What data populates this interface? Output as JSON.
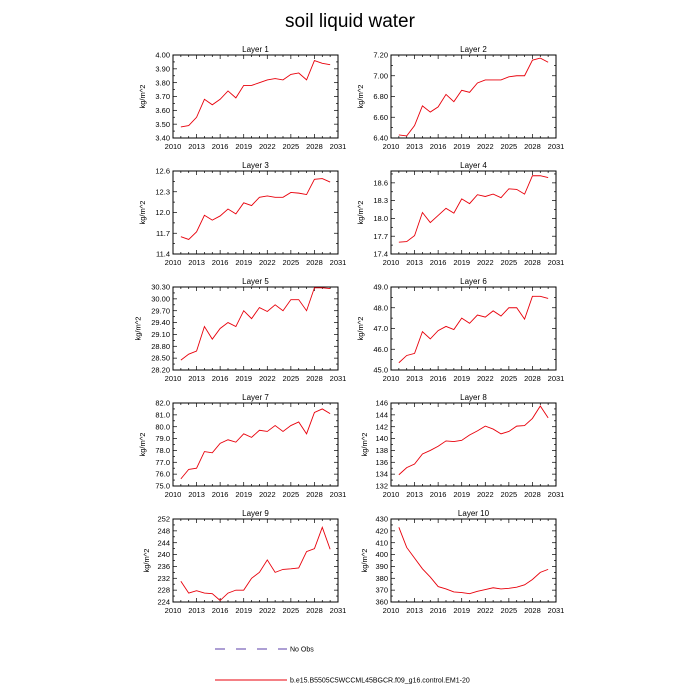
{
  "title": "soil liquid water",
  "legend": {
    "no_obs_label": "No Obs",
    "model_label": "b.e15.B5505C5WCCML45BGCR.f09_g16.control.EM1-20",
    "obs_color": "#5b3fa8",
    "model_color": "#e8000b"
  },
  "chart_data": [
    {
      "type": "line",
      "title": "Layer 1",
      "ylabel": "kg/m^2",
      "xlim": [
        2010,
        2031
      ],
      "xticks": [
        2010,
        2013,
        2016,
        2019,
        2022,
        2025,
        2028,
        2031
      ],
      "ylim": [
        3.4,
        4.0
      ],
      "yticks": [
        "3.40",
        "3.50",
        "3.60",
        "3.70",
        "3.80",
        "3.90",
        "4.00"
      ],
      "x": [
        2011,
        2012,
        2013,
        2014,
        2015,
        2016,
        2017,
        2018,
        2019,
        2020,
        2021,
        2022,
        2023,
        2024,
        2025,
        2026,
        2027,
        2028,
        2029,
        2030
      ],
      "series": [
        {
          "values": [
            3.48,
            3.49,
            3.55,
            3.68,
            3.64,
            3.68,
            3.74,
            3.69,
            3.78,
            3.78,
            3.8,
            3.82,
            3.83,
            3.82,
            3.86,
            3.87,
            3.82,
            3.96,
            3.94,
            3.93
          ]
        }
      ]
    },
    {
      "type": "line",
      "title": "Layer 2",
      "ylabel": "kg/m^2",
      "xlim": [
        2010,
        2031
      ],
      "xticks": [
        2010,
        2013,
        2016,
        2019,
        2022,
        2025,
        2028,
        2031
      ],
      "ylim": [
        6.4,
        7.2
      ],
      "yticks": [
        "6.40",
        "6.60",
        "6.80",
        "7.00",
        "7.20"
      ],
      "x": [
        2011,
        2012,
        2013,
        2014,
        2015,
        2016,
        2017,
        2018,
        2019,
        2020,
        2021,
        2022,
        2023,
        2024,
        2025,
        2026,
        2027,
        2028,
        2029,
        2030
      ],
      "series": [
        {
          "values": [
            6.43,
            6.42,
            6.52,
            6.71,
            6.65,
            6.7,
            6.82,
            6.75,
            6.86,
            6.84,
            6.93,
            6.96,
            6.96,
            6.96,
            6.99,
            7.0,
            7.0,
            7.15,
            7.17,
            7.13
          ]
        }
      ]
    },
    {
      "type": "line",
      "title": "Layer 3",
      "ylabel": "kg/m^2",
      "xlim": [
        2010,
        2031
      ],
      "xticks": [
        2010,
        2013,
        2016,
        2019,
        2022,
        2025,
        2028,
        2031
      ],
      "ylim": [
        11.4,
        12.6
      ],
      "yticks": [
        "11.4",
        "11.7",
        "12.0",
        "12.3",
        "12.6"
      ],
      "x": [
        2011,
        2012,
        2013,
        2014,
        2015,
        2016,
        2017,
        2018,
        2019,
        2020,
        2021,
        2022,
        2023,
        2024,
        2025,
        2026,
        2027,
        2028,
        2029,
        2030
      ],
      "series": [
        {
          "values": [
            11.65,
            11.61,
            11.72,
            11.96,
            11.89,
            11.95,
            12.05,
            11.98,
            12.14,
            12.1,
            12.22,
            12.24,
            12.22,
            12.22,
            12.29,
            12.28,
            12.26,
            12.48,
            12.49,
            12.44
          ]
        }
      ]
    },
    {
      "type": "line",
      "title": "Layer 4",
      "ylabel": "kg/m^2",
      "xlim": [
        2010,
        2031
      ],
      "xticks": [
        2010,
        2013,
        2016,
        2019,
        2022,
        2025,
        2028,
        2031
      ],
      "ylim": [
        17.4,
        18.8
      ],
      "yticks": [
        "17.4",
        "17.7",
        "18.0",
        "18.3",
        "18.6"
      ],
      "x": [
        2011,
        2012,
        2013,
        2014,
        2015,
        2016,
        2017,
        2018,
        2019,
        2020,
        2021,
        2022,
        2023,
        2024,
        2025,
        2026,
        2027,
        2028,
        2029,
        2030
      ],
      "series": [
        {
          "values": [
            17.6,
            17.61,
            17.71,
            18.1,
            17.93,
            18.05,
            18.17,
            18.09,
            18.33,
            18.25,
            18.4,
            18.37,
            18.41,
            18.35,
            18.5,
            18.49,
            18.41,
            18.72,
            18.72,
            18.69
          ]
        }
      ]
    },
    {
      "type": "line",
      "title": "Layer 5",
      "ylabel": "kg/m^2",
      "xlim": [
        2010,
        2031
      ],
      "xticks": [
        2010,
        2013,
        2016,
        2019,
        2022,
        2025,
        2028,
        2031
      ],
      "ylim": [
        28.2,
        30.3
      ],
      "yticks": [
        "28.20",
        "28.50",
        "28.80",
        "29.10",
        "29.40",
        "29.70",
        "30.00",
        "30.30"
      ],
      "x": [
        2011,
        2012,
        2013,
        2014,
        2015,
        2016,
        2017,
        2018,
        2019,
        2020,
        2021,
        2022,
        2023,
        2024,
        2025,
        2026,
        2027,
        2028,
        2029,
        2030
      ],
      "series": [
        {
          "values": [
            28.45,
            28.6,
            28.68,
            29.3,
            28.98,
            29.25,
            29.4,
            29.3,
            29.7,
            29.5,
            29.78,
            29.68,
            29.85,
            29.7,
            29.98,
            29.98,
            29.7,
            30.28,
            30.28,
            30.26
          ]
        }
      ]
    },
    {
      "type": "line",
      "title": "Layer 6",
      "ylabel": "kg/m^2",
      "xlim": [
        2010,
        2031
      ],
      "xticks": [
        2010,
        2013,
        2016,
        2019,
        2022,
        2025,
        2028,
        2031
      ],
      "ylim": [
        45.0,
        49.0
      ],
      "yticks": [
        "45.0",
        "46.0",
        "47.0",
        "48.0",
        "49.0"
      ],
      "x": [
        2011,
        2012,
        2013,
        2014,
        2015,
        2016,
        2017,
        2018,
        2019,
        2020,
        2021,
        2022,
        2023,
        2024,
        2025,
        2026,
        2027,
        2028,
        2029,
        2030
      ],
      "series": [
        {
          "values": [
            45.35,
            45.7,
            45.8,
            46.85,
            46.5,
            46.9,
            47.1,
            46.95,
            47.5,
            47.25,
            47.65,
            47.55,
            47.85,
            47.6,
            48.0,
            48.0,
            47.45,
            48.55,
            48.55,
            48.45
          ]
        }
      ]
    },
    {
      "type": "line",
      "title": "Layer 7",
      "ylabel": "kg/m^2",
      "xlim": [
        2010,
        2031
      ],
      "xticks": [
        2010,
        2013,
        2016,
        2019,
        2022,
        2025,
        2028,
        2031
      ],
      "ylim": [
        75.0,
        82.0
      ],
      "yticks": [
        "75.0",
        "76.0",
        "77.0",
        "78.0",
        "79.0",
        "80.0",
        "81.0",
        "82.0"
      ],
      "x": [
        2011,
        2012,
        2013,
        2014,
        2015,
        2016,
        2017,
        2018,
        2019,
        2020,
        2021,
        2022,
        2023,
        2024,
        2025,
        2026,
        2027,
        2028,
        2029,
        2030
      ],
      "series": [
        {
          "values": [
            75.6,
            76.4,
            76.5,
            77.9,
            77.8,
            78.6,
            78.9,
            78.7,
            79.4,
            79.1,
            79.7,
            79.6,
            80.1,
            79.6,
            80.1,
            80.4,
            79.4,
            81.2,
            81.5,
            81.1
          ]
        }
      ]
    },
    {
      "type": "line",
      "title": "Layer 8",
      "ylabel": "kg/m^2",
      "xlim": [
        2010,
        2031
      ],
      "xticks": [
        2010,
        2013,
        2016,
        2019,
        2022,
        2025,
        2028,
        2031
      ],
      "ylim": [
        132,
        146
      ],
      "yticks": [
        "132",
        "134",
        "136",
        "138",
        "140",
        "142",
        "144",
        "146"
      ],
      "x": [
        2011,
        2012,
        2013,
        2014,
        2015,
        2016,
        2017,
        2018,
        2019,
        2020,
        2021,
        2022,
        2023,
        2024,
        2025,
        2026,
        2027,
        2028,
        2029,
        2030
      ],
      "series": [
        {
          "values": [
            133.9,
            135.1,
            135.7,
            137.4,
            138.0,
            138.7,
            139.6,
            139.5,
            139.7,
            140.6,
            141.3,
            142.1,
            141.6,
            140.8,
            141.2,
            142.1,
            142.2,
            143.4,
            145.5,
            143.5
          ]
        }
      ]
    },
    {
      "type": "line",
      "title": "Layer 9",
      "ylabel": "kg/m^2",
      "xlim": [
        2010,
        2031
      ],
      "xticks": [
        2010,
        2013,
        2016,
        2019,
        2022,
        2025,
        2028,
        2031
      ],
      "ylim": [
        224,
        252
      ],
      "yticks": [
        "224",
        "228",
        "232",
        "236",
        "240",
        "244",
        "248",
        "252"
      ],
      "x": [
        2011,
        2012,
        2013,
        2014,
        2015,
        2016,
        2017,
        2018,
        2019,
        2020,
        2021,
        2022,
        2023,
        2024,
        2025,
        2026,
        2027,
        2028,
        2029,
        2030
      ],
      "series": [
        {
          "values": [
            231.0,
            227.0,
            227.8,
            227.0,
            226.8,
            224.5,
            227.0,
            228.0,
            228.0,
            232.0,
            234.0,
            238.2,
            234.0,
            235.0,
            235.2,
            235.5,
            241.0,
            242.0,
            249.2,
            241.8
          ]
        }
      ]
    },
    {
      "type": "line",
      "title": "Layer 10",
      "ylabel": "kg/m^2",
      "xlim": [
        2010,
        2031
      ],
      "xticks": [
        2010,
        2013,
        2016,
        2019,
        2022,
        2025,
        2028,
        2031
      ],
      "ylim": [
        360,
        430
      ],
      "yticks": [
        "360",
        "370",
        "380",
        "390",
        "400",
        "410",
        "420",
        "430"
      ],
      "x": [
        2011,
        2012,
        2013,
        2014,
        2015,
        2016,
        2017,
        2018,
        2019,
        2020,
        2021,
        2022,
        2023,
        2024,
        2025,
        2026,
        2027,
        2028,
        2029,
        2030
      ],
      "series": [
        {
          "values": [
            423.0,
            406.0,
            397.0,
            388.0,
            381.0,
            373.0,
            371.0,
            368.5,
            368.0,
            367.0,
            369.0,
            370.5,
            372.0,
            371.0,
            371.5,
            372.5,
            374.5,
            379.0,
            385.0,
            387.5
          ]
        }
      ]
    }
  ]
}
